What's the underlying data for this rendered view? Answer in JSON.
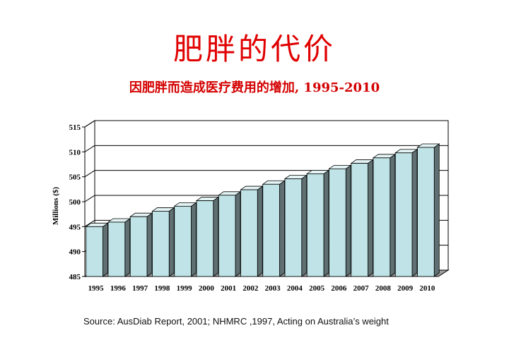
{
  "title": "肥胖的代价",
  "subtitle": "因肥胖而造成医疗费用的增加, 1995-2010",
  "source": "Source: AusDiab Report, 2001; NHMRC ,1997, Acting on Australia’s weight",
  "colors": {
    "title": "#e00000",
    "bar_front": "#bfe3e6",
    "bar_side": "#5f6f72",
    "bar_top": "#e4f3f4",
    "wall": "#ffffff"
  },
  "chart_data": {
    "type": "bar",
    "categories": [
      "1995",
      "1996",
      "1997",
      "1998",
      "1999",
      "2000",
      "2001",
      "2002",
      "2003",
      "2004",
      "2005",
      "2006",
      "2007",
      "2008",
      "2009",
      "2010"
    ],
    "values": [
      495.0,
      495.9,
      497.0,
      498.1,
      499.1,
      500.2,
      501.3,
      502.4,
      503.5,
      504.6,
      505.6,
      506.6,
      507.7,
      508.8,
      509.8,
      510.9
    ],
    "ylabel": "Millions ($)",
    "ylim": [
      485,
      515
    ],
    "yticks": [
      485,
      490,
      495,
      500,
      505,
      510,
      515
    ],
    "grid": true,
    "style": "3d"
  }
}
